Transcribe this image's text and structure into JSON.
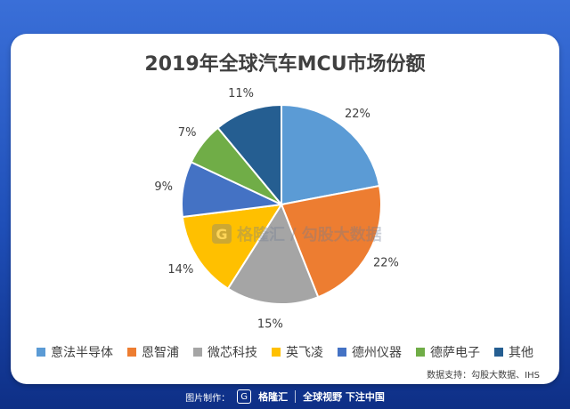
{
  "chart_data": {
    "type": "pie",
    "title": "2019年全球汽车MCU市场份额",
    "categories": [
      "意法半导体",
      "恩智浦",
      "微芯科技",
      "英飞凌",
      "德州仪器",
      "德萨电子",
      "其他"
    ],
    "values": [
      22,
      22,
      15,
      14,
      9,
      7,
      11
    ],
    "labels": [
      "22%",
      "22%",
      "15%",
      "14%",
      "9%",
      "7%",
      "11%"
    ],
    "colors": [
      "#5b9bd5",
      "#ed7d31",
      "#a5a5a5",
      "#ffc000",
      "#4472c4",
      "#70ad47",
      "#255e91"
    ],
    "legend_position": "bottom"
  },
  "source": "数据支持：勾股大数据、IHS",
  "watermark": {
    "logo": "G",
    "brand": "格隆汇",
    "slash": "/",
    "text": "勾股大数据"
  },
  "footer": {
    "made_by": "图片制作：",
    "brand": "格隆汇",
    "slogan": "全球视野 下注中国"
  }
}
